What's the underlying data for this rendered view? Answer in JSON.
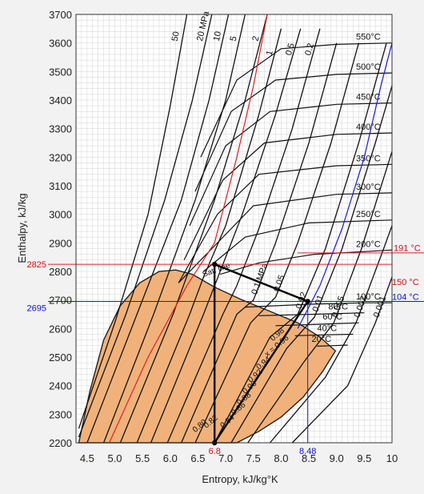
{
  "chart_data": {
    "type": "line",
    "title": "",
    "xlabel": "Entropy, kJ/kg°K",
    "ylabel": "Enthalpy, kJ/kg",
    "xlim": [
      4.3,
      10
    ],
    "ylim": [
      2200,
      3700
    ],
    "x_ticks": [
      "4.5",
      "5.0",
      "5.5",
      "6.0",
      "6.5",
      "7.0",
      "7.5",
      "8.0",
      "8.5",
      "9.0",
      "9.5",
      "10"
    ],
    "y_ticks": [
      "2200",
      "2300",
      "2400",
      "2500",
      "2600",
      "2700",
      "2800",
      "2900",
      "3000",
      "3100",
      "3200",
      "3300",
      "3400",
      "3500",
      "3600",
      "3700"
    ],
    "grid": true,
    "dome": {
      "fill": "#f0b27a",
      "points": [
        [
          4.35,
          2200
        ],
        [
          4.55,
          2380
        ],
        [
          4.8,
          2560
        ],
        [
          5.1,
          2680
        ],
        [
          5.45,
          2760
        ],
        [
          5.8,
          2800
        ],
        [
          6.1,
          2805
        ],
        [
          6.4,
          2790
        ],
        [
          6.8,
          2745
        ],
        [
          7.3,
          2700
        ],
        [
          7.8,
          2660
        ],
        [
          8.3,
          2620
        ],
        [
          8.7,
          2570
        ],
        [
          8.98,
          2522
        ],
        [
          8.75,
          2450
        ],
        [
          8.4,
          2360
        ],
        [
          8.0,
          2290
        ],
        [
          7.6,
          2240
        ],
        [
          7.2,
          2200
        ]
      ]
    },
    "isobars": [
      {
        "label": "50",
        "points": [
          [
            4.35,
            2250
          ],
          [
            5.0,
            2620
          ],
          [
            5.6,
            3000
          ],
          [
            6.0,
            3380
          ],
          [
            6.3,
            3700
          ]
        ]
      },
      {
        "label": "20 MPa",
        "points": [
          [
            4.35,
            2220
          ],
          [
            5.2,
            2650
          ],
          [
            5.9,
            3050
          ],
          [
            6.4,
            3400
          ],
          [
            6.75,
            3700
          ]
        ]
      },
      {
        "label": "10",
        "points": [
          [
            4.5,
            2200
          ],
          [
            5.4,
            2650
          ],
          [
            6.2,
            3050
          ],
          [
            6.7,
            3400
          ],
          [
            7.05,
            3700
          ]
        ]
      },
      {
        "label": "5",
        "points": [
          [
            4.8,
            2200
          ],
          [
            5.7,
            2650
          ],
          [
            6.45,
            3050
          ],
          [
            7.0,
            3400
          ],
          [
            7.35,
            3700
          ]
        ]
      },
      {
        "label": "2",
        "points": [
          [
            5.1,
            2200
          ],
          [
            6.05,
            2650
          ],
          [
            6.8,
            3050
          ],
          [
            7.35,
            3400
          ],
          [
            7.75,
            3700
          ]
        ]
      },
      {
        "label": "1",
        "points": [
          [
            5.4,
            2200
          ],
          [
            6.35,
            2650
          ],
          [
            6.6,
            2780
          ],
          [
            7.0,
            2960
          ],
          [
            7.6,
            3350
          ],
          [
            8.0,
            3650
          ]
        ]
      },
      {
        "label": "0.5",
        "points": [
          [
            5.65,
            2200
          ],
          [
            6.6,
            2650
          ],
          [
            6.9,
            2800
          ],
          [
            7.3,
            3000
          ],
          [
            7.9,
            3350
          ],
          [
            8.35,
            3650
          ]
        ]
      },
      {
        "label": "0.2",
        "points": [
          [
            5.95,
            2200
          ],
          [
            6.95,
            2650
          ],
          [
            7.2,
            2750
          ],
          [
            7.6,
            2950
          ],
          [
            8.2,
            3300
          ],
          [
            8.7,
            3650
          ]
        ]
      },
      {
        "label": "0.1 MPa",
        "points": [
          [
            6.2,
            2200
          ],
          [
            7.2,
            2650
          ],
          [
            7.5,
            2700
          ],
          [
            7.9,
            2900
          ],
          [
            8.5,
            3250
          ],
          [
            9.0,
            3600
          ]
        ]
      },
      {
        "label": "0.05",
        "points": [
          [
            6.45,
            2200
          ],
          [
            7.45,
            2620
          ],
          [
            7.9,
            2710
          ],
          [
            8.3,
            2900
          ],
          [
            8.9,
            3250
          ],
          [
            9.4,
            3600
          ]
        ]
      },
      {
        "label": "0.02",
        "points": [
          [
            6.8,
            2200
          ],
          [
            7.8,
            2570
          ],
          [
            8.3,
            2650
          ],
          [
            8.8,
            2880
          ],
          [
            9.4,
            3250
          ],
          [
            9.9,
            3600
          ]
        ]
      },
      {
        "label": "0.01",
        "points": [
          [
            7.1,
            2200
          ],
          [
            8.1,
            2530
          ],
          [
            8.6,
            2640
          ],
          [
            9.1,
            2880
          ],
          [
            9.7,
            3250
          ],
          [
            10.0,
            3450
          ]
        ]
      },
      {
        "label": "0.005",
        "points": [
          [
            7.4,
            2200
          ],
          [
            8.4,
            2480
          ],
          [
            8.95,
            2620
          ],
          [
            9.45,
            2880
          ],
          [
            10.0,
            3220
          ]
        ]
      },
      {
        "label": "0.002",
        "points": [
          [
            7.8,
            2200
          ],
          [
            8.8,
            2430
          ],
          [
            9.35,
            2620
          ],
          [
            9.85,
            2880
          ],
          [
            10.0,
            2960
          ]
        ]
      },
      {
        "label": "0.001",
        "points": [
          [
            8.2,
            2200
          ],
          [
            9.2,
            2400
          ],
          [
            9.7,
            2620
          ],
          [
            10.0,
            2780
          ]
        ]
      }
    ],
    "isotherms": [
      {
        "label": "550°C",
        "points": [
          [
            6.55,
            3200
          ],
          [
            7.2,
            3470
          ],
          [
            8.0,
            3580
          ],
          [
            9.0,
            3595
          ],
          [
            10.0,
            3600
          ]
        ]
      },
      {
        "label": "500°C",
        "points": [
          [
            6.45,
            3080
          ],
          [
            7.1,
            3360
          ],
          [
            7.9,
            3470
          ],
          [
            9.0,
            3490
          ],
          [
            10.0,
            3495
          ]
        ]
      },
      {
        "label": "450°C",
        "points": [
          [
            6.35,
            2960
          ],
          [
            7.0,
            3240
          ],
          [
            7.8,
            3360
          ],
          [
            9.0,
            3385
          ],
          [
            10.0,
            3390
          ]
        ]
      },
      {
        "label": "400°C",
        "points": [
          [
            6.25,
            2840
          ],
          [
            6.95,
            3120
          ],
          [
            7.7,
            3250
          ],
          [
            9.0,
            3280
          ],
          [
            10.0,
            3285
          ]
        ]
      },
      {
        "label": "350°C",
        "points": [
          [
            6.15,
            2760
          ],
          [
            6.85,
            3000
          ],
          [
            7.6,
            3140
          ],
          [
            9.0,
            3170
          ],
          [
            10.0,
            3175
          ]
        ]
      },
      {
        "label": "300°C",
        "points": [
          [
            6.15,
            2760
          ],
          [
            6.75,
            2880
          ],
          [
            7.5,
            3030
          ],
          [
            9.0,
            3070
          ],
          [
            10.0,
            3075
          ]
        ]
      },
      {
        "label": "250°C",
        "points": [
          [
            6.6,
            2800
          ],
          [
            7.35,
            2920
          ],
          [
            8.5,
            2970
          ],
          [
            10.0,
            2980
          ]
        ]
      },
      {
        "label": "200°C",
        "points": [
          [
            6.9,
            2790
          ],
          [
            7.6,
            2830
          ],
          [
            8.6,
            2860
          ],
          [
            10.0,
            2875
          ]
        ]
      },
      {
        "label": "100°C",
        "points": [
          [
            7.35,
            2675
          ],
          [
            8.5,
            2685
          ],
          [
            9.5,
            2690
          ],
          [
            10.0,
            2690
          ]
        ]
      },
      {
        "label": "80°C",
        "points": [
          [
            7.6,
            2645
          ],
          [
            8.6,
            2650
          ],
          [
            9.5,
            2655
          ]
        ]
      },
      {
        "label": "60°C",
        "points": [
          [
            7.9,
            2610
          ],
          [
            8.7,
            2615
          ],
          [
            9.4,
            2620
          ]
        ]
      },
      {
        "label": "40°C",
        "points": [
          [
            8.25,
            2575
          ],
          [
            8.8,
            2578
          ],
          [
            9.3,
            2580
          ]
        ]
      },
      {
        "label": "20°C",
        "points": [
          [
            8.65,
            2538
          ],
          [
            8.95,
            2540
          ],
          [
            9.2,
            2542
          ]
        ]
      }
    ],
    "quality_labels": [
      {
        "label": "0.98",
        "x": 7.85,
        "y": 2555
      },
      {
        "label": "x = 0.96",
        "x": 7.75,
        "y": 2500
      },
      {
        "label": "0.94",
        "x": 7.6,
        "y": 2455
      },
      {
        "label": "0.92",
        "x": 7.45,
        "y": 2410
      },
      {
        "label": "0.90",
        "x": 7.35,
        "y": 2370
      },
      {
        "label": "0.88",
        "x": 7.25,
        "y": 2330
      },
      {
        "label": "0.86",
        "x": 7.15,
        "y": 2295
      },
      {
        "label": "0.84",
        "x": 6.95,
        "y": 2250
      },
      {
        "label": "0.82",
        "x": 6.65,
        "y": 2250
      },
      {
        "label": "0.80",
        "x": 6.45,
        "y": 2235
      }
    ],
    "sat_line_label": "Sat. line",
    "process": {
      "points": [
        [
          6.8,
          2825
        ],
        [
          8.48,
          2695
        ],
        [
          6.8,
          2200
        ],
        [
          6.8,
          2825
        ]
      ]
    },
    "red_markers": {
      "h_value": "2825",
      "s_value": "6.8",
      "h": 2825,
      "s": 6.8,
      "temp_labels": [
        "191 °C",
        "150 °C"
      ],
      "curve": [
        [
          4.9,
          2200
        ],
        [
          5.6,
          2500
        ],
        [
          6.3,
          2750
        ],
        [
          6.8,
          2900
        ],
        [
          7.2,
          3200
        ],
        [
          7.5,
          3450
        ],
        [
          7.75,
          3700
        ]
      ]
    },
    "blue_markers": {
      "h_value": "2695",
      "s_value": "8.48",
      "h": 2695,
      "s": 8.48,
      "temp_label": "104 °C",
      "curve": [
        [
          8.3,
          2600
        ],
        [
          8.7,
          2750
        ],
        [
          9.1,
          2950
        ],
        [
          9.5,
          3200
        ],
        [
          9.8,
          3450
        ],
        [
          10.0,
          3600
        ]
      ]
    }
  }
}
